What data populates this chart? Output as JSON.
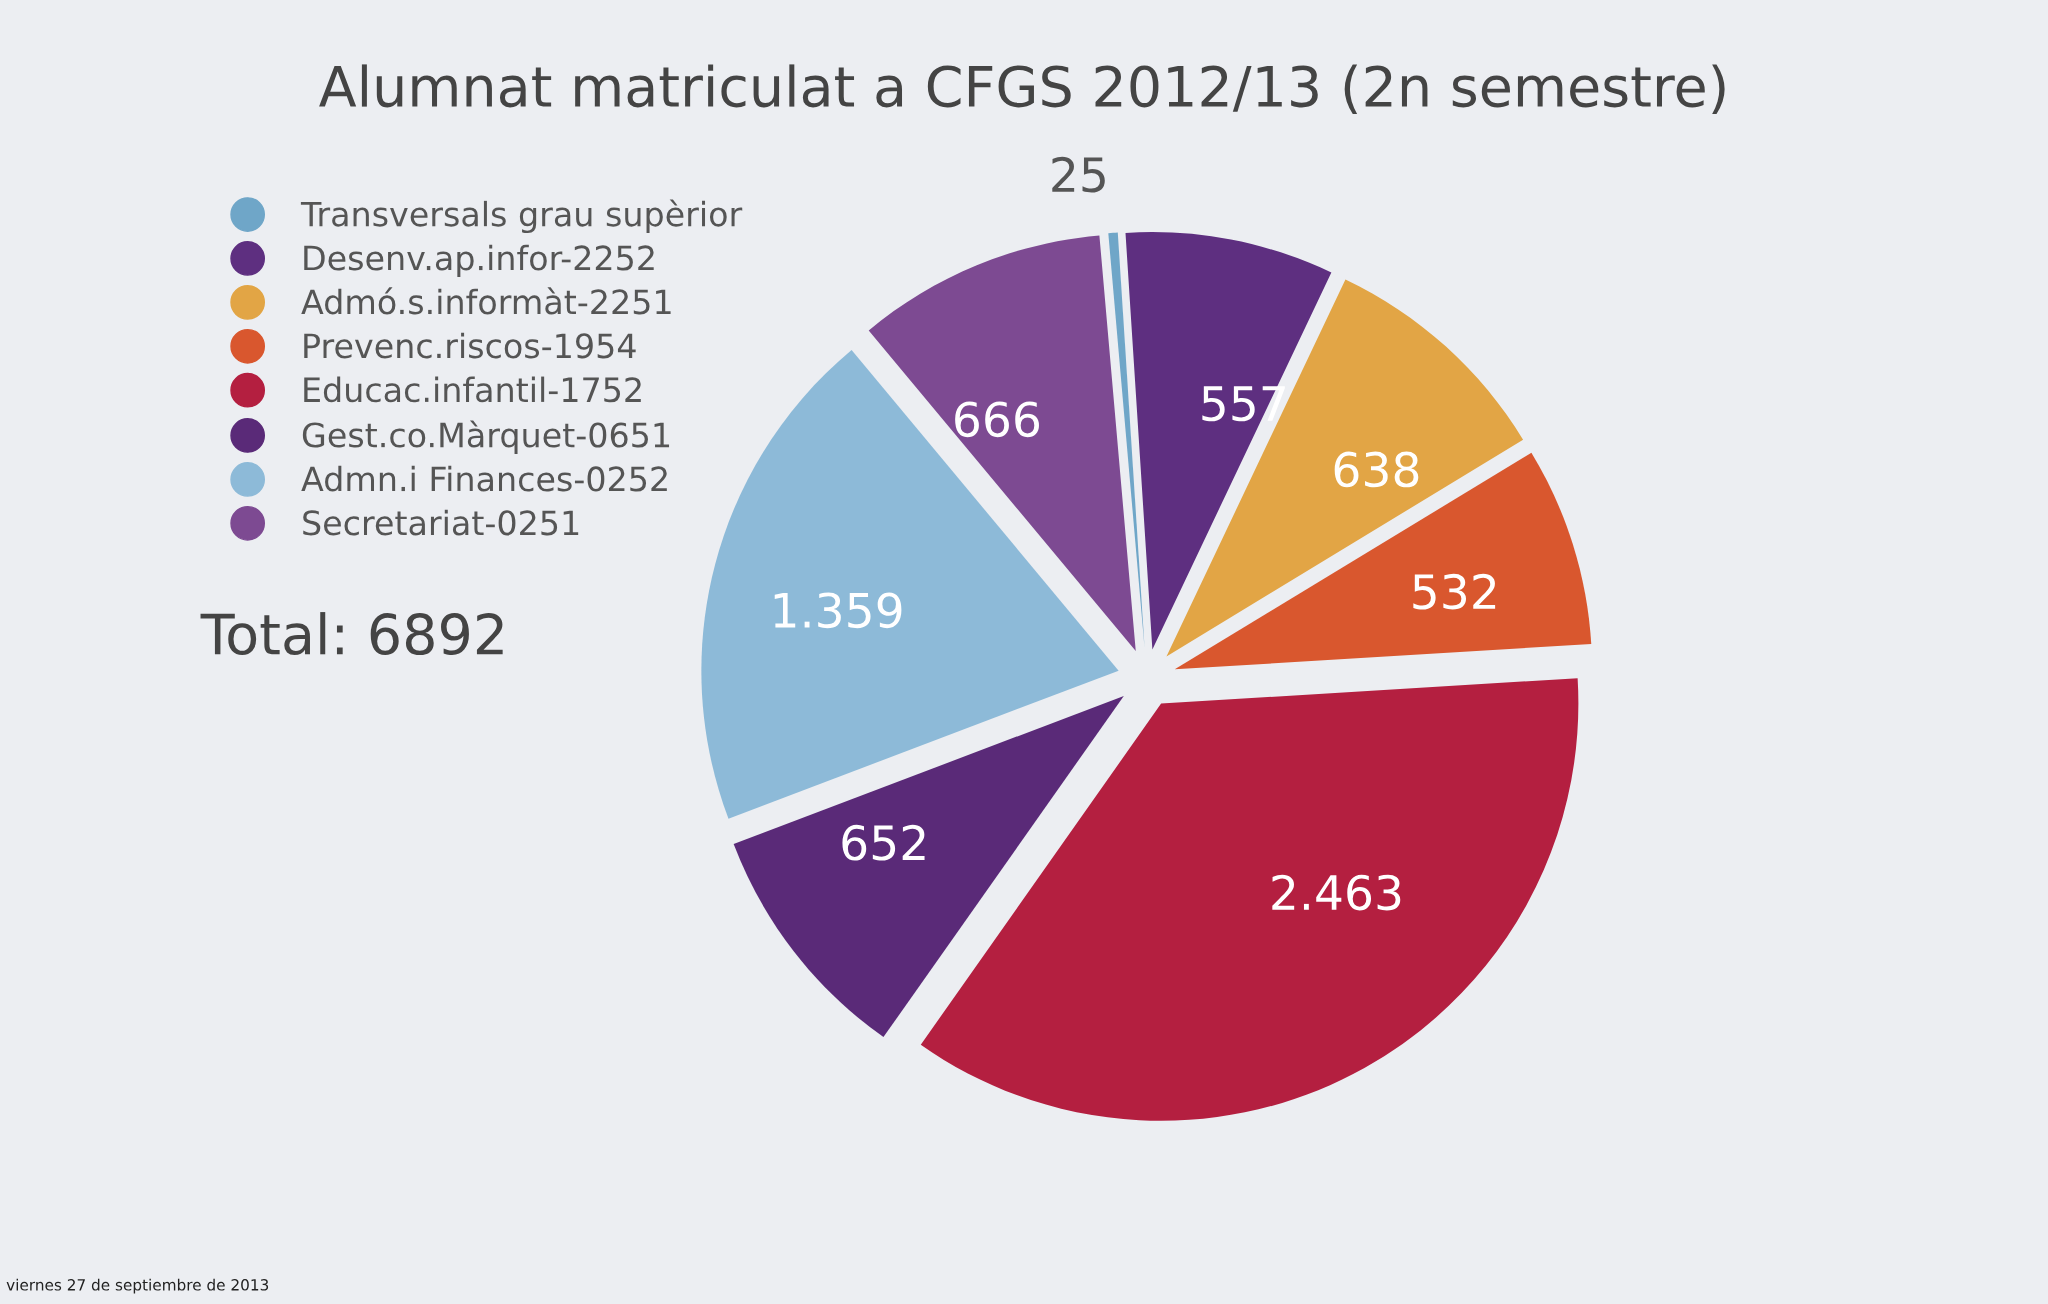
{
  "chart_data": {
    "type": "pie",
    "title": "Alumnat matriculat a CFGS 2012/13 (2n semestre)",
    "categories": [
      "Transversals grau supèrior",
      "Desenv.ap.infor-2252",
      "Admó.s.informàt-2251",
      "Prevenc.riscos-1954",
      "Educac.infantil-1752",
      "Gest.co.Màrquet-0651",
      "Admn.i Finances-0252",
      "Secretariat-0251"
    ],
    "values": [
      25,
      557,
      638,
      532,
      2463,
      652,
      1359,
      666
    ],
    "value_labels": [
      "25",
      "557",
      "638",
      "532",
      "2.463",
      "652",
      "1.359",
      "666"
    ],
    "colors": [
      "#6fa6c8",
      "#5e2f80",
      "#e2a545",
      "#d9572e",
      "#b41f40",
      "#5a2a78",
      "#8dbad8",
      "#7d4a92"
    ],
    "legend": "top left",
    "annotations": [
      "Total: 6892",
      "viernes 27 de septiembre de 2013"
    ]
  }
}
